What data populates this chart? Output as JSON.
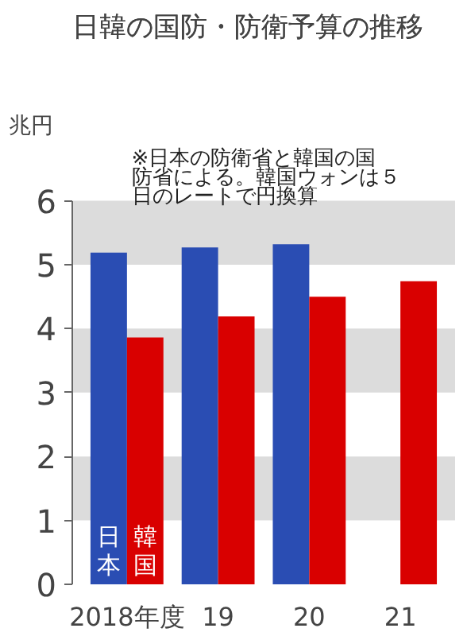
{
  "chart_data": {
    "type": "bar",
    "title": "日韓の国防・防衛予算の推移",
    "annotations": [
      "※日本の防衛省と韓国の国防省による。韓国ウォンは５日のレートで円換算"
    ],
    "ylabel": "兆円",
    "categories": [
      "2018年度",
      "19",
      "20",
      "21"
    ],
    "series": [
      {
        "name": "日本",
        "color": "#2a4db3",
        "values": [
          5.19,
          5.27,
          5.32,
          null
        ]
      },
      {
        "name": "韓国",
        "color": "#d90000",
        "values": [
          3.86,
          4.19,
          4.5,
          4.74
        ]
      }
    ],
    "ylim": [
      0,
      6
    ],
    "yticks": [
      0,
      1,
      2,
      3,
      4,
      5,
      6
    ],
    "bands": [
      {
        "axis": "y",
        "from": 1,
        "to": 2,
        "color": "#dcdcdc"
      },
      {
        "axis": "y",
        "from": 3,
        "to": 4,
        "color": "#dcdcdc"
      },
      {
        "axis": "y",
        "from": 5,
        "to": 6,
        "color": "#dcdcdc"
      }
    ],
    "grid": false
  }
}
